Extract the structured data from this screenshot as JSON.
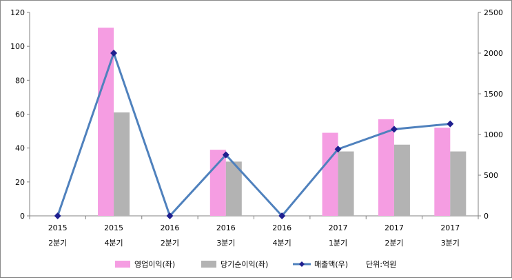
{
  "chart_data": {
    "type": "bar",
    "categories": [
      {
        "year": "2015",
        "quarter": "2분기"
      },
      {
        "year": "2015",
        "quarter": "4분기"
      },
      {
        "year": "2016",
        "quarter": "2분기"
      },
      {
        "year": "2016",
        "quarter": "3분기"
      },
      {
        "year": "2016",
        "quarter": "4분기"
      },
      {
        "year": "2017",
        "quarter": "1분기"
      },
      {
        "year": "2017",
        "quarter": "2분기"
      },
      {
        "year": "2017",
        "quarter": "3분기"
      }
    ],
    "series": [
      {
        "name": "영업이익(좌)",
        "type": "bar",
        "axis": "left",
        "color": "#f59de2",
        "values": [
          null,
          111,
          null,
          39,
          null,
          49,
          57,
          52
        ]
      },
      {
        "name": "당기순이익(좌)",
        "type": "bar",
        "axis": "left",
        "color": "#b3b3b3",
        "values": [
          null,
          61,
          null,
          32,
          null,
          38,
          42,
          38
        ]
      },
      {
        "name": "매출액(우)",
        "type": "line",
        "axis": "right",
        "color": "#4f81bd",
        "marker_color": "#1f1f8f",
        "values": [
          0,
          2000,
          0,
          750,
          0,
          820,
          1065,
          1130
        ]
      }
    ],
    "ylim_left": [
      0,
      120
    ],
    "yticks_left": [
      0,
      20,
      40,
      60,
      80,
      100,
      120
    ],
    "ylim_right": [
      0,
      2500
    ],
    "yticks_right": [
      0,
      500,
      1000,
      1500,
      2000,
      2500
    ],
    "grid": false,
    "legend_position": "bottom",
    "unit_note": "단위:억원"
  }
}
